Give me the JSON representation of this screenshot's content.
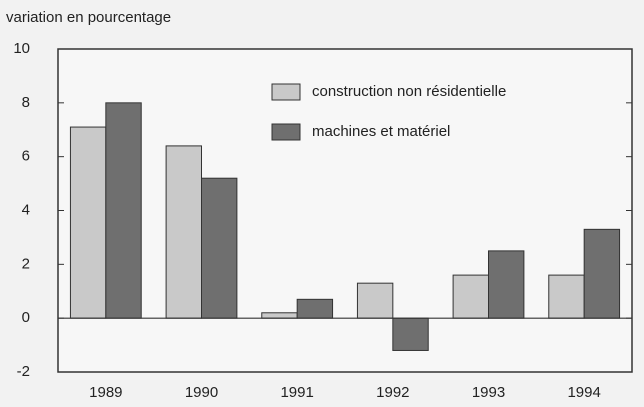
{
  "chart_data": {
    "type": "bar",
    "y_label": "variation en pourcentage",
    "categories": [
      "1989",
      "1990",
      "1991",
      "1992",
      "1993",
      "1994"
    ],
    "series": [
      {
        "name": "construction non résidentielle",
        "color": "#c9c9c9",
        "values": [
          7.1,
          6.4,
          0.2,
          1.3,
          1.6,
          1.6
        ]
      },
      {
        "name": "machines et matériel",
        "color": "#6f6f6f",
        "values": [
          8.0,
          5.2,
          0.7,
          -1.2,
          2.5,
          3.3
        ]
      }
    ],
    "ylim": [
      -2,
      10
    ],
    "yticks": [
      -2,
      0,
      2,
      4,
      6,
      8,
      10
    ],
    "legend": "top-right"
  }
}
